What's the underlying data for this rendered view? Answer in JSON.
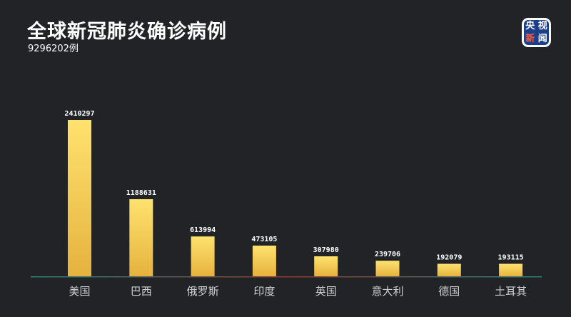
{
  "header": {
    "title": "全球新冠肺炎确诊病例",
    "total": "9296202例"
  },
  "logo": {
    "chars": [
      "央",
      "视",
      "新",
      "闻"
    ]
  },
  "colors": {
    "background": "#222326",
    "bar_top": "#ffe26e",
    "bar_bottom": "#e6b23e",
    "axis_left": "#2f7f7a",
    "axis_mid": "#8a3a32",
    "axis_right": "#2f7f7a",
    "value_label": "#ffffff",
    "category_label": "#cfcfcf"
  },
  "chart_data": {
    "type": "bar",
    "categories": [
      "美国",
      "巴西",
      "俄罗斯",
      "印度",
      "英国",
      "意大利",
      "德国",
      "土耳其"
    ],
    "values": [
      2410297,
      1188631,
      613994,
      473105,
      307980,
      239706,
      192079,
      193115
    ],
    "title": "全球新冠肺炎确诊病例",
    "subtitle": "9296202例",
    "grid": false,
    "legend": "none"
  }
}
